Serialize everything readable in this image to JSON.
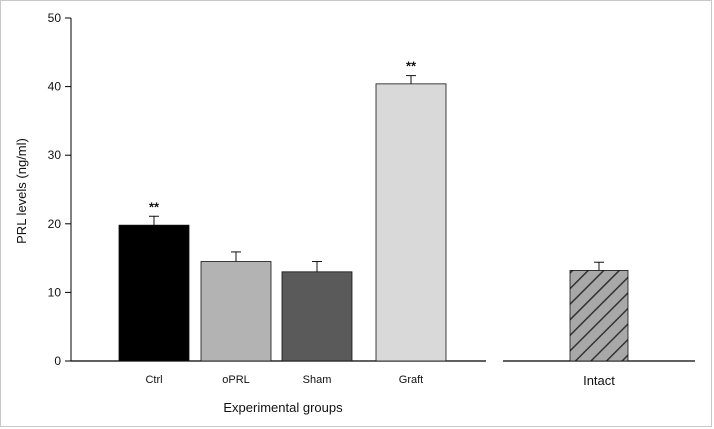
{
  "chart_data": {
    "type": "bar",
    "xlabel": "Experimental groups",
    "ylabel": "PRL levels (ng/ml)",
    "ylim": [
      0,
      50
    ],
    "yticks": [
      0,
      10,
      20,
      30,
      40,
      50
    ],
    "grid": false,
    "legend": "none",
    "groups": [
      {
        "name": "",
        "bars": [
          {
            "category": "Ctrl",
            "value": 19.8,
            "error": 1.3,
            "annotation": "**",
            "color": "#000000",
            "pattern": "solid"
          },
          {
            "category": "oPRL",
            "value": 14.5,
            "error": 1.4,
            "annotation": "",
            "color": "#b3b3b3",
            "pattern": "solid"
          },
          {
            "category": "Sham",
            "value": 13.0,
            "error": 1.5,
            "annotation": "",
            "color": "#5a5a5a",
            "pattern": "solid"
          },
          {
            "category": "Graft",
            "value": 40.4,
            "error": 1.2,
            "annotation": "**",
            "color": "#d9d9d9",
            "pattern": "solid"
          }
        ]
      },
      {
        "name": "",
        "bars": [
          {
            "category": "Intact",
            "value": 13.2,
            "error": 1.2,
            "annotation": "",
            "color": "#a8a8a8",
            "pattern": "hatch"
          }
        ]
      }
    ]
  }
}
